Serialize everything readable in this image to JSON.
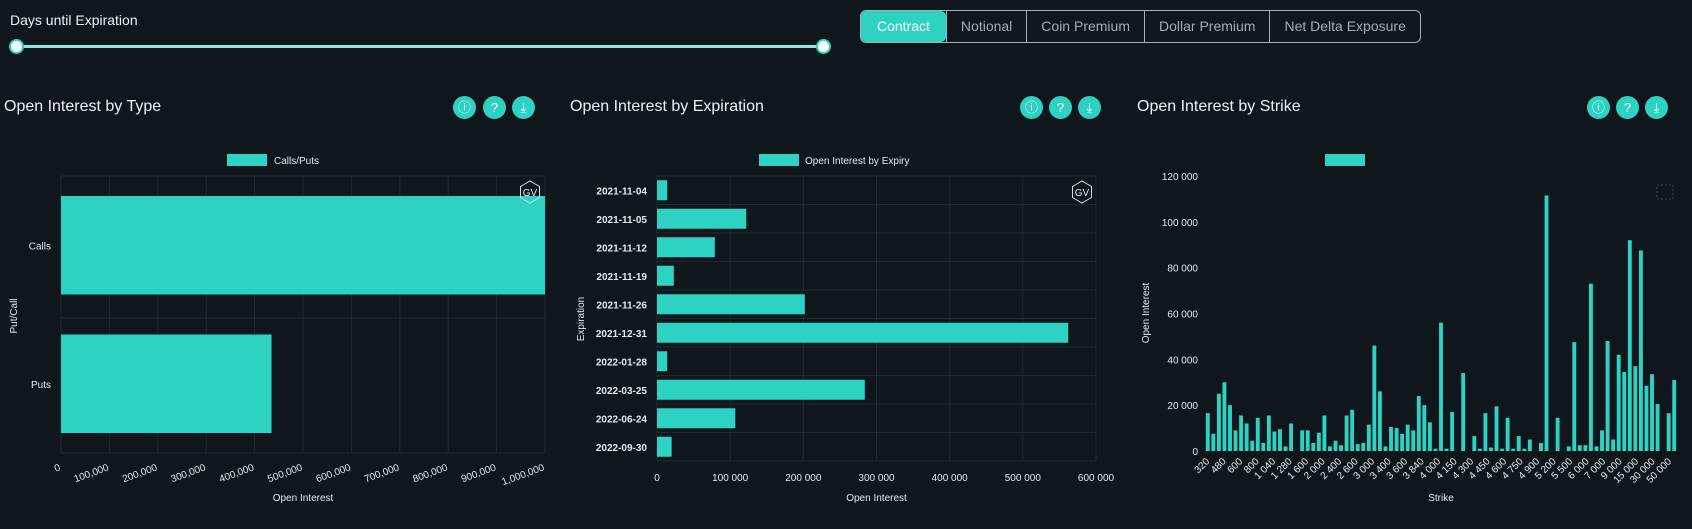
{
  "slider": {
    "title": "Days until Expiration"
  },
  "tabs": [
    "Contract",
    "Notional",
    "Coin Premium",
    "Dollar Premium",
    "Net Delta Exposure"
  ],
  "active_tab": "Contract",
  "colors": {
    "accent": "#2dd2c3",
    "background": "#0f171d"
  },
  "panels": [
    {
      "title": "Open Interest by Type",
      "icons": [
        "info-icon",
        "help-icon",
        "download-icon"
      ]
    },
    {
      "title": "Open Interest by Expiration",
      "icons": [
        "info-icon",
        "help-icon",
        "download-icon"
      ]
    },
    {
      "title": "Open Interest by Strike",
      "icons": [
        "info-icon",
        "help-icon",
        "download-icon"
      ]
    }
  ],
  "watermark": "GV",
  "chart_data": [
    {
      "type": "bar",
      "orientation": "horizontal",
      "legend": "Calls/Puts",
      "xlabel": "Open Interest",
      "ylabel": "Put/Call",
      "categories": [
        "Calls",
        "Puts"
      ],
      "values": [
        1000000,
        435000
      ],
      "xlim": [
        0,
        1000000
      ],
      "xticks": [
        "0",
        "100,000",
        "200,000",
        "300,000",
        "400,000",
        "500,000",
        "600,000",
        "700,000",
        "800,000",
        "900,000",
        "1,000,000"
      ]
    },
    {
      "type": "bar",
      "orientation": "horizontal",
      "legend": "Open Interest by Expiry",
      "xlabel": "Open Interest",
      "ylabel": "Expiration",
      "categories": [
        "2021-11-04",
        "2021-11-05",
        "2021-11-12",
        "2021-11-19",
        "2021-11-26",
        "2021-12-31",
        "2022-01-28",
        "2022-03-25",
        "2022-06-24",
        "2022-09-30"
      ],
      "values": [
        14000,
        122000,
        79000,
        23000,
        202000,
        562000,
        14000,
        284000,
        107000,
        20000
      ],
      "xlim": [
        0,
        600000
      ],
      "xticks": [
        "0",
        "100 000",
        "200 000",
        "300 000",
        "400 000",
        "500 000",
        "600 000"
      ]
    },
    {
      "type": "bar",
      "legend": "",
      "xlabel": "Strike",
      "ylabel": "Open Interest",
      "ylim": [
        0,
        120000
      ],
      "yticks": [
        "0",
        "20 000",
        "40 000",
        "60 000",
        "80 000",
        "100 000",
        "120 000"
      ],
      "xticks": [
        "320",
        "480",
        "600",
        "800",
        "1 040",
        "1 280",
        "1 600",
        "2 000",
        "2 400",
        "2 600",
        "3 000",
        "3 400",
        "3 600",
        "3 840",
        "4 000",
        "4 150",
        "4 300",
        "4 450",
        "4 600",
        "4 750",
        "4 900",
        "5 200",
        "5 500",
        "6 000",
        "7 000",
        "9 000",
        "15 000",
        "30 000",
        "50 000"
      ],
      "values": [
        16500,
        7500,
        25000,
        30000,
        20000,
        9000,
        15500,
        12000,
        4500,
        14500,
        3500,
        15500,
        8500,
        9500,
        2000,
        12000,
        0,
        9000,
        9000,
        3500,
        8000,
        15500,
        2000,
        4500,
        2500,
        15500,
        18000,
        3000,
        3500,
        11500,
        46000,
        26000,
        2000,
        10500,
        10000,
        7500,
        11500,
        9000,
        24000,
        20000,
        12500,
        1000,
        56000,
        1000,
        17000,
        0,
        34000,
        0,
        6500,
        1000,
        16500,
        1500,
        19500,
        1000,
        14500,
        1000,
        6500,
        1000,
        5000,
        0,
        3500,
        111500,
        0,
        14500,
        0,
        2000,
        47500,
        2500,
        2500,
        73000,
        2000,
        9000,
        48000,
        5000,
        42000,
        34500,
        92000,
        37000,
        87500,
        28500,
        33500,
        20500,
        0,
        16500,
        31000
      ]
    }
  ]
}
